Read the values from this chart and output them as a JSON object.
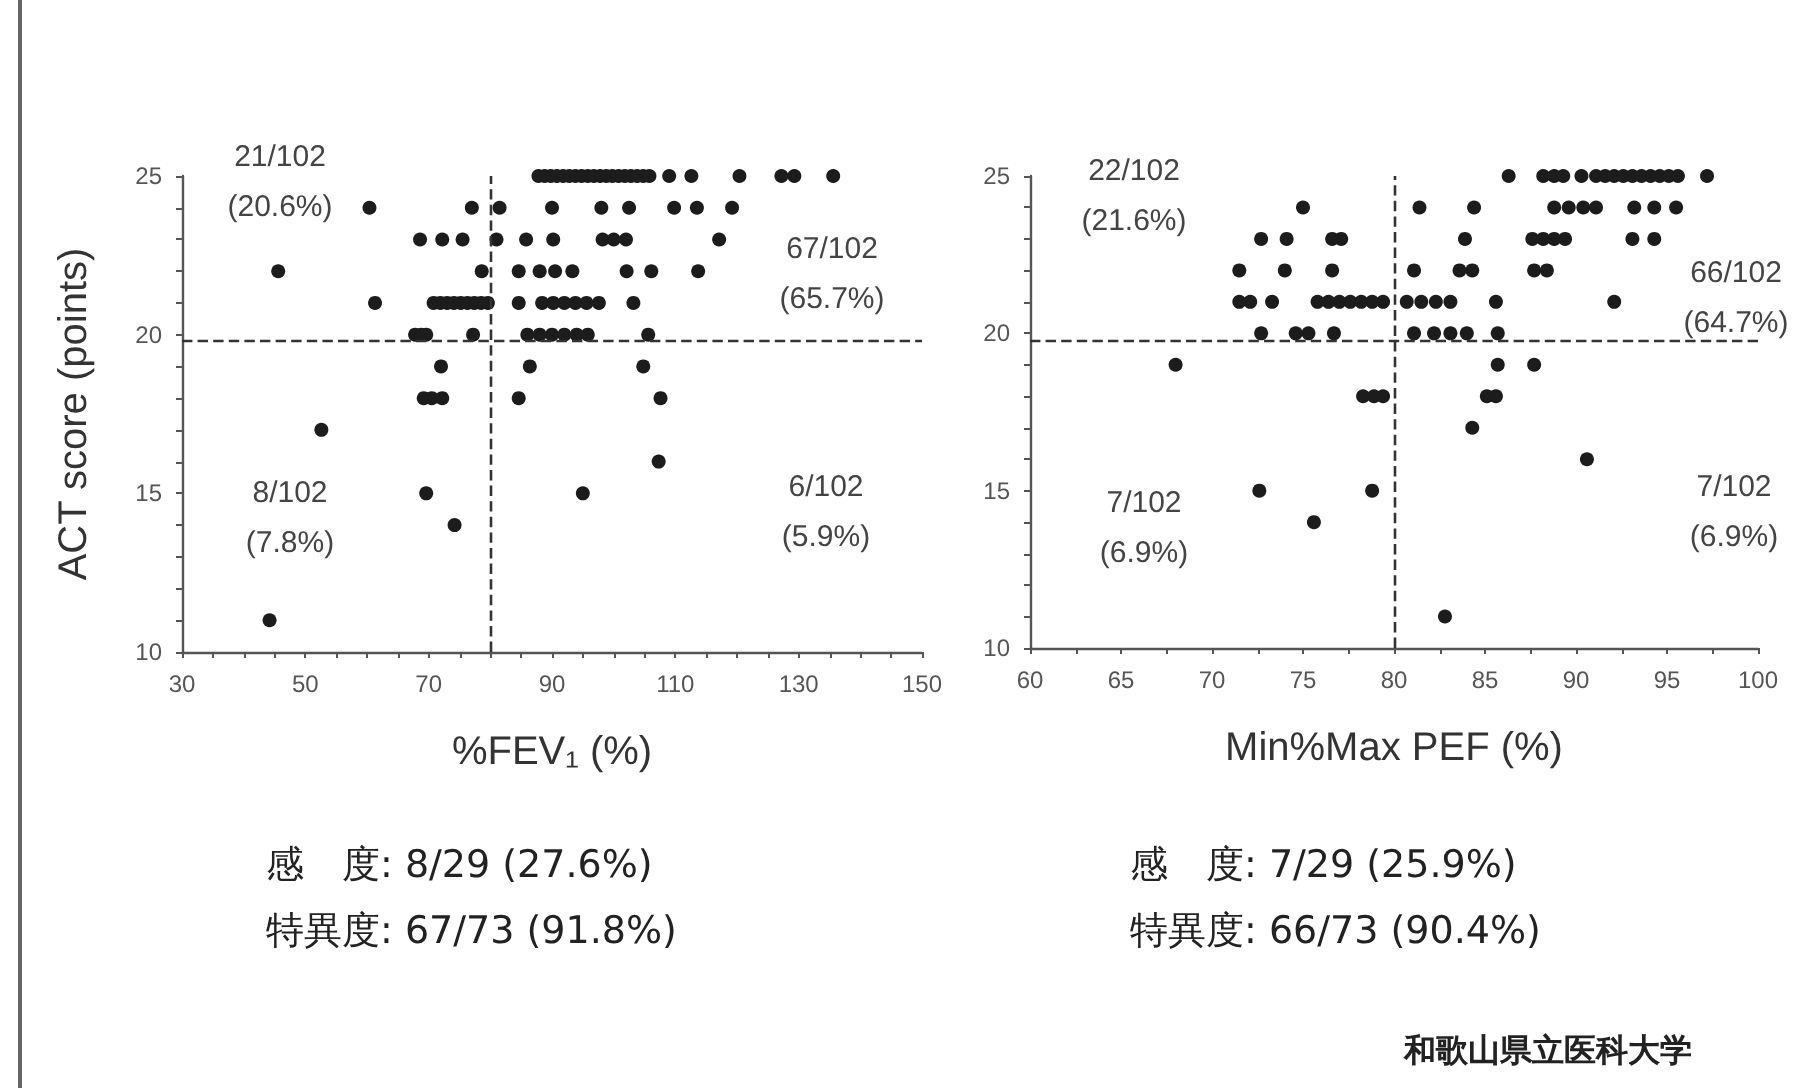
{
  "chart_data": [
    {
      "type": "scatter",
      "xlabel": "%FEV₁ (%)",
      "ylabel": "ACT score (points)",
      "color": "#1c1c1c",
      "marker": "circle",
      "x": [
        87.8,
        88.8,
        89.8,
        90.8,
        91.8,
        92.8,
        93.8,
        94.8,
        95.8,
        96.8,
        97.8,
        98.8,
        99.8,
        100.8,
        101.8,
        102.8,
        103.8,
        104.8,
        105.8,
        109,
        112.6,
        120.4,
        127.2,
        129.3,
        135.6,
        60.4,
        77,
        81.5,
        90,
        98,
        102.5,
        109.8,
        113.5,
        119.2,
        68.6,
        72.2,
        75.5,
        81,
        85.8,
        90.2,
        98.2,
        100,
        102,
        117.1,
        45.6,
        78.6,
        84.6,
        88,
        90.5,
        93.3,
        102.1,
        106.1,
        113.7,
        61.3,
        70.8,
        71.9,
        73,
        74.1,
        75.2,
        76.3,
        77.4,
        78.5,
        79.6,
        84.6,
        88.4,
        90.2,
        92,
        93.8,
        95.6,
        97.6,
        103.2,
        67.8,
        68.8,
        69.6,
        77.2,
        86,
        88,
        90,
        92,
        94,
        95.8,
        105.6,
        72,
        86.4,
        104.8,
        69.2,
        70.5,
        72.2,
        84.6,
        107.6,
        52.6,
        107.3,
        69.6,
        95,
        74.2,
        44.2
      ],
      "values": [
        25,
        25,
        25,
        25,
        25,
        25,
        25,
        25,
        25,
        25,
        25,
        25,
        25,
        25,
        25,
        25,
        25,
        25,
        25,
        25,
        25,
        25,
        25,
        25,
        25,
        24,
        24,
        24,
        24,
        24,
        24,
        24,
        24,
        24,
        23,
        23,
        23,
        23,
        23,
        23,
        23,
        23,
        23,
        23,
        22,
        22,
        22,
        22,
        22,
        22,
        22,
        22,
        22,
        21,
        21,
        21,
        21,
        21,
        21,
        21,
        21,
        21,
        21,
        21,
        21,
        21,
        21,
        21,
        21,
        21,
        21,
        20,
        20,
        20,
        20,
        20,
        20,
        20,
        20,
        20,
        20,
        20,
        19,
        19,
        19,
        18,
        18,
        18,
        18,
        18,
        17,
        16,
        15,
        15,
        14,
        11
      ],
      "xlim": [
        30,
        150
      ],
      "xticks": [
        30,
        {
          "value": 35,
          "label": null
        },
        {
          "value": 40,
          "label": null
        },
        {
          "value": 45,
          "label": null
        },
        50,
        {
          "value": 55,
          "label": null
        },
        {
          "value": 60,
          "label": null
        },
        {
          "value": 65,
          "label": null
        },
        70,
        {
          "value": 75,
          "label": null
        },
        {
          "value": 80,
          "label": null
        },
        {
          "value": 85,
          "label": null
        },
        90,
        {
          "value": 95,
          "label": null
        },
        {
          "value": 100,
          "label": null
        },
        {
          "value": 105,
          "label": null
        },
        110,
        {
          "value": 115,
          "label": null
        },
        {
          "value": 120,
          "label": null
        },
        {
          "value": 125,
          "label": null
        },
        130,
        {
          "value": 135,
          "label": null
        },
        {
          "value": 140,
          "label": null
        },
        {
          "value": 145,
          "label": null
        },
        150
      ],
      "ylim": [
        10,
        25
      ],
      "yticks": [
        10,
        {
          "value": 11,
          "label": null
        },
        {
          "value": 12,
          "label": null
        },
        {
          "value": 13,
          "label": null
        },
        {
          "value": 14,
          "label": null
        },
        15,
        {
          "value": 16,
          "label": null
        },
        {
          "value": 17,
          "label": null
        },
        {
          "value": 18,
          "label": null
        },
        {
          "value": 19,
          "label": null
        },
        20,
        {
          "value": 21,
          "label": null
        },
        {
          "value": 22,
          "label": null
        },
        {
          "value": 23,
          "label": null
        },
        {
          "value": 24,
          "label": null
        },
        25
      ],
      "ref_lines": [
        {
          "axis": "x",
          "value": 80,
          "line_style": "dashed"
        },
        {
          "axis": "y",
          "value": 19.8,
          "line_style": "dashed"
        }
      ],
      "annotations": [
        "21/102\n(20.6%)",
        "67/102\n(65.7%)",
        "8/102\n(7.8%)",
        "6/102\n(5.9%)",
        "感　度: 8/29 (27.6%)",
        "特異度: 67/73 (91.8%)"
      ]
    },
    {
      "type": "scatter",
      "xlabel": "Min%Max PEF (%)",
      "color": "#1c1c1c",
      "marker": "circle",
      "x": [
        86.3,
        88.2,
        88.8,
        89.3,
        90.3,
        91.1,
        91.6,
        92.1,
        92.6,
        93.1,
        93.6,
        94.1,
        94.6,
        95.1,
        95.6,
        97.2,
        75,
        81.4,
        84.4,
        88.8,
        89.6,
        90.4,
        91.1,
        93.2,
        94.3,
        95.5,
        72.7,
        74.1,
        76.6,
        77.1,
        83.9,
        87.6,
        88.2,
        88.8,
        89.4,
        93.1,
        94.3,
        71.5,
        74,
        76.6,
        81.1,
        83.6,
        84.3,
        87.7,
        88.4,
        71.5,
        72.1,
        73.3,
        75.8,
        76.4,
        77,
        77.6,
        78.2,
        78.8,
        79.4,
        80.7,
        81.5,
        82.3,
        83.1,
        85.6,
        92.1,
        72.7,
        74.6,
        75.3,
        76.7,
        81.1,
        82.2,
        83.1,
        84,
        85.7,
        68,
        85.7,
        87.7,
        78.3,
        78.9,
        79.4,
        85.1,
        85.6,
        84.3,
        90.6,
        72.6,
        78.8,
        75.6,
        82.8
      ],
      "values": [
        25,
        25,
        25,
        25,
        25,
        25,
        25,
        25,
        25,
        25,
        25,
        25,
        25,
        25,
        25,
        25,
        24,
        24,
        24,
        24,
        24,
        24,
        24,
        24,
        24,
        24,
        23,
        23,
        23,
        23,
        23,
        23,
        23,
        23,
        23,
        23,
        23,
        22,
        22,
        22,
        22,
        22,
        22,
        22,
        22,
        21,
        21,
        21,
        21,
        21,
        21,
        21,
        21,
        21,
        21,
        21,
        21,
        21,
        21,
        21,
        21,
        20,
        20,
        20,
        20,
        20,
        20,
        20,
        20,
        20,
        19,
        19,
        19,
        18,
        18,
        18,
        18,
        18,
        17,
        16,
        15,
        15,
        14,
        11
      ],
      "xlim": [
        60,
        100
      ],
      "xticks": [
        60,
        {
          "value": 62.5,
          "label": null
        },
        65,
        {
          "value": 67.5,
          "label": null
        },
        70,
        {
          "value": 72.5,
          "label": null
        },
        75,
        {
          "value": 77.5,
          "label": null
        },
        80,
        {
          "value": 82.5,
          "label": null
        },
        85,
        {
          "value": 87.5,
          "label": null
        },
        90,
        {
          "value": 92.5,
          "label": null
        },
        95,
        {
          "value": 97.5,
          "label": null
        },
        100
      ],
      "ylim": [
        10,
        25
      ],
      "yticks": [
        10,
        {
          "value": 11,
          "label": null
        },
        {
          "value": 12,
          "label": null
        },
        {
          "value": 13,
          "label": null
        },
        {
          "value": 14,
          "label": null
        },
        15,
        {
          "value": 16,
          "label": null
        },
        {
          "value": 17,
          "label": null
        },
        {
          "value": 18,
          "label": null
        },
        {
          "value": 19,
          "label": null
        },
        20,
        {
          "value": 21,
          "label": null
        },
        {
          "value": 22,
          "label": null
        },
        {
          "value": 23,
          "label": null
        },
        {
          "value": 24,
          "label": null
        },
        25
      ],
      "ref_lines": [
        {
          "axis": "x",
          "value": 80,
          "line_style": "dashed"
        },
        {
          "axis": "y",
          "value": 19.8,
          "line_style": "dashed"
        }
      ],
      "annotations": [
        "22/102\n(21.6%)",
        "66/102\n(64.7%)",
        "7/102\n(6.9%)",
        "7/102\n(6.9%)",
        "感　度: 7/29 (25.9%)",
        "特異度: 66/73 (90.4%)",
        "和歌山県立医科大学"
      ]
    }
  ]
}
